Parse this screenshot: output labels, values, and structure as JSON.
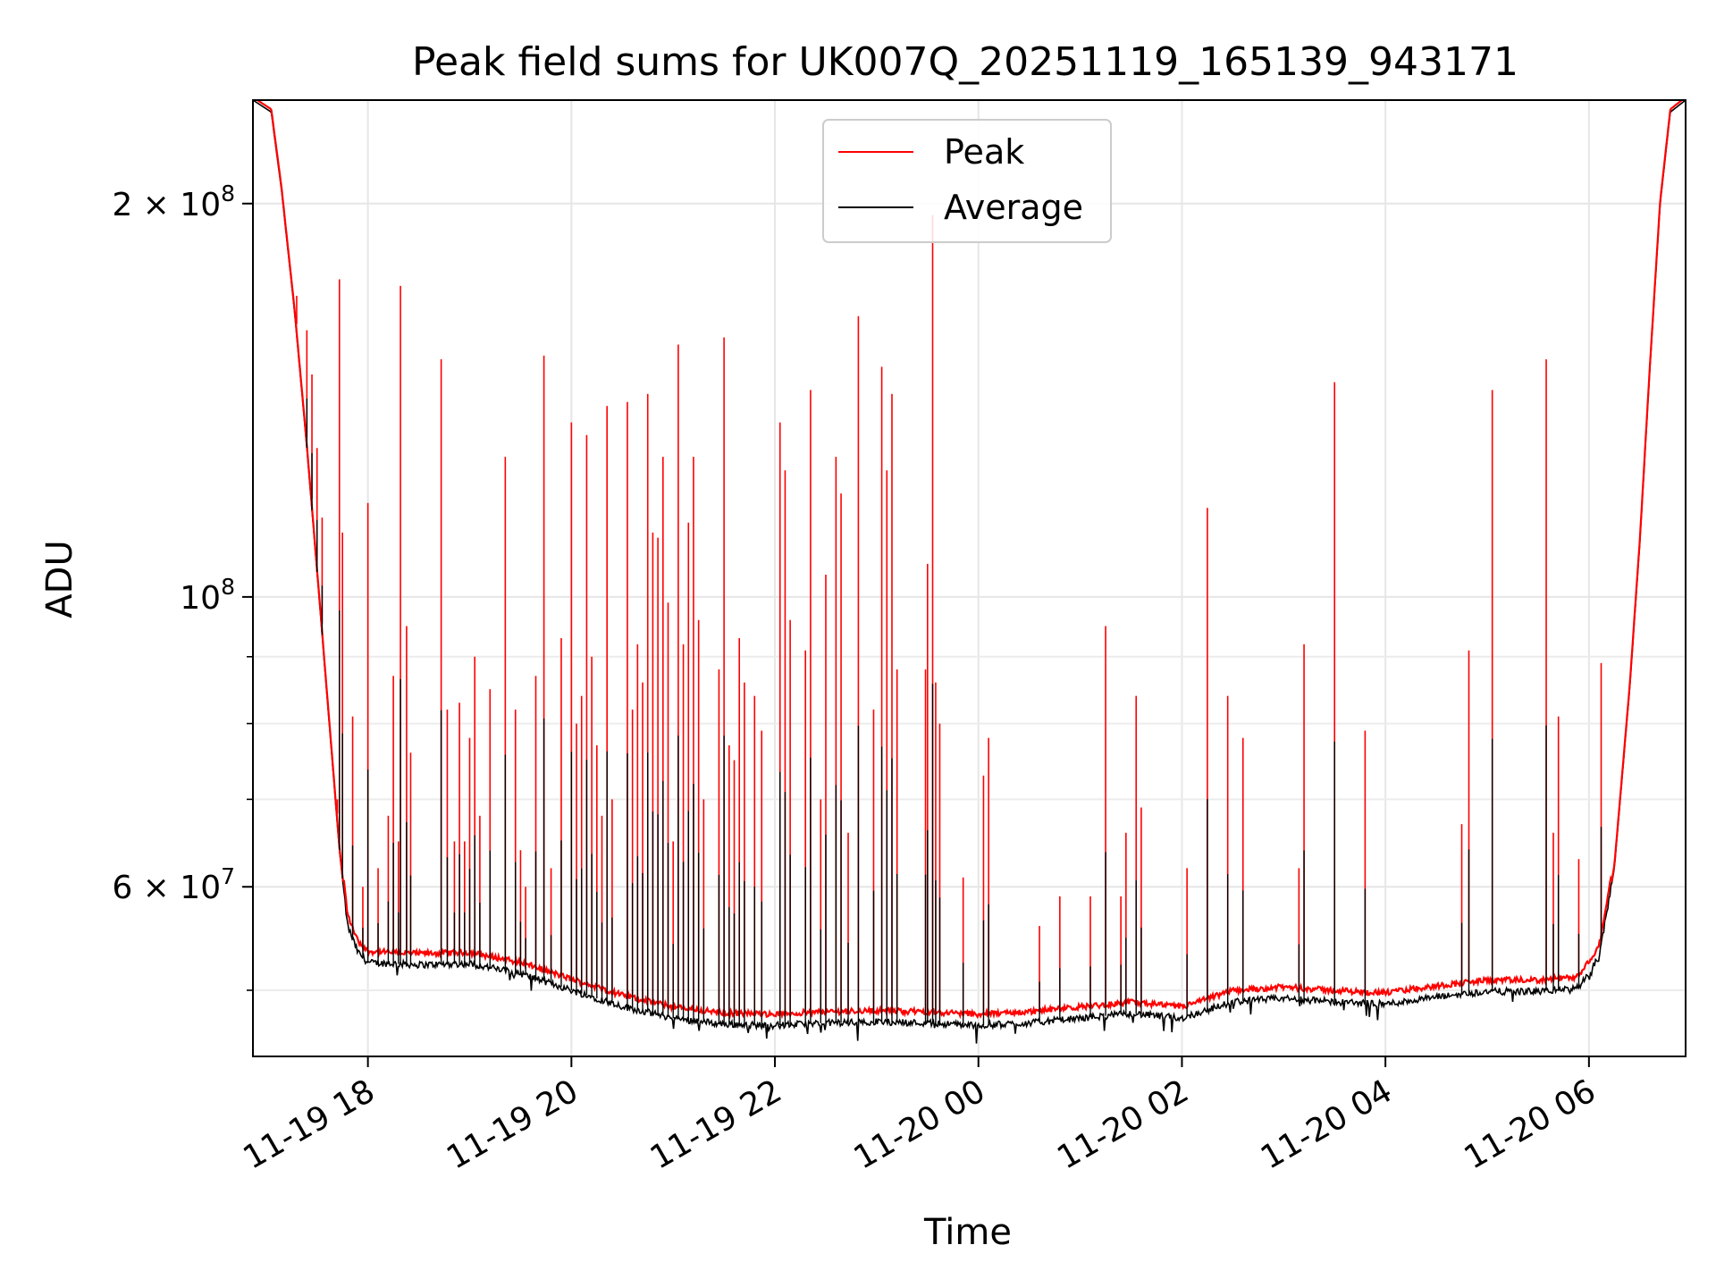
{
  "chart_data": {
    "type": "line",
    "title": "Peak field sums for UK007Q_20251119_165139_943171",
    "xlabel": "Time",
    "ylabel": "ADU",
    "yscale": "log",
    "ylim": [
      44500000,
      240000000
    ],
    "xlim_hours": [
      -1.13,
      12.95
    ],
    "x_ticks": [
      {
        "hour": 0,
        "label": "11-19 18"
      },
      {
        "hour": 2,
        "label": "11-19 20"
      },
      {
        "hour": 4,
        "label": "11-19 22"
      },
      {
        "hour": 6,
        "label": "11-20 00"
      },
      {
        "hour": 8,
        "label": "11-20 02"
      },
      {
        "hour": 10,
        "label": "11-20 04"
      },
      {
        "hour": 12,
        "label": "11-20 06"
      }
    ],
    "y_major_ticks": [
      {
        "value": 200000000,
        "label": "2 × 10",
        "exp": "8"
      },
      {
        "value": 100000000,
        "label": "10",
        "exp": "8"
      },
      {
        "value": 60000000,
        "label": "6 × 10",
        "exp": "7"
      }
    ],
    "y_minor_grid": [
      50000000,
      70000000,
      80000000,
      90000000
    ],
    "grid": true,
    "legend": {
      "position": "upper-center",
      "entries": [
        "Peak",
        "Average"
      ]
    },
    "series_colors": {
      "Peak": "#ff0000",
      "Average": "#000000"
    },
    "baseline_average": [
      [
        -1.13,
        240000000
      ],
      [
        -0.95,
        235000000
      ],
      [
        -0.85,
        205000000
      ],
      [
        -0.72,
        165000000
      ],
      [
        -0.6,
        130000000
      ],
      [
        -0.48,
        100000000
      ],
      [
        -0.38,
        80000000
      ],
      [
        -0.28,
        64000000
      ],
      [
        -0.2,
        56000000
      ],
      [
        -0.1,
        53500000
      ],
      [
        0.0,
        52500000
      ],
      [
        0.5,
        52300000
      ],
      [
        1.0,
        52400000
      ],
      [
        1.5,
        51500000
      ],
      [
        2.0,
        50000000
      ],
      [
        2.5,
        48600000
      ],
      [
        3.0,
        47600000
      ],
      [
        3.5,
        47100000
      ],
      [
        4.0,
        47000000
      ],
      [
        4.5,
        47200000
      ],
      [
        5.0,
        47300000
      ],
      [
        5.5,
        47200000
      ],
      [
        6.0,
        47000000
      ],
      [
        6.5,
        47200000
      ],
      [
        7.0,
        47600000
      ],
      [
        7.5,
        48000000
      ],
      [
        8.0,
        47600000
      ],
      [
        8.5,
        49000000
      ],
      [
        9.0,
        49300000
      ],
      [
        9.5,
        49000000
      ],
      [
        10.0,
        48800000
      ],
      [
        10.5,
        49400000
      ],
      [
        11.0,
        49900000
      ],
      [
        11.5,
        49900000
      ],
      [
        11.9,
        50200000
      ],
      [
        12.1,
        53000000
      ],
      [
        12.25,
        62000000
      ],
      [
        12.4,
        85000000
      ],
      [
        12.5,
        110000000
      ],
      [
        12.6,
        150000000
      ],
      [
        12.7,
        200000000
      ],
      [
        12.8,
        235000000
      ],
      [
        12.95,
        240000000
      ]
    ],
    "peak_offset_fraction": 0.02,
    "peak_spikes": [
      [
        -0.7,
        170000000
      ],
      [
        -0.6,
        160000000
      ],
      [
        -0.55,
        148000000
      ],
      [
        -0.5,
        130000000
      ],
      [
        -0.45,
        115000000
      ],
      [
        -0.3,
        70000000
      ],
      [
        -0.28,
        175000000
      ],
      [
        -0.25,
        112000000
      ],
      [
        -0.15,
        81000000
      ],
      [
        -0.05,
        60000000
      ],
      [
        0.0,
        118000000
      ],
      [
        0.1,
        62000000
      ],
      [
        0.2,
        68000000
      ],
      [
        0.25,
        87000000
      ],
      [
        0.3,
        65000000
      ],
      [
        0.32,
        173000000
      ],
      [
        0.38,
        95000000
      ],
      [
        0.42,
        76000000
      ],
      [
        0.72,
        152000000
      ],
      [
        0.78,
        82000000
      ],
      [
        0.85,
        65000000
      ],
      [
        0.9,
        83000000
      ],
      [
        0.95,
        65000000
      ],
      [
        1.0,
        78000000
      ],
      [
        1.05,
        90000000
      ],
      [
        1.1,
        68000000
      ],
      [
        1.2,
        85000000
      ],
      [
        1.35,
        128000000
      ],
      [
        1.45,
        82000000
      ],
      [
        1.5,
        64000000
      ],
      [
        1.55,
        60000000
      ],
      [
        1.65,
        87000000
      ],
      [
        1.73,
        153000000
      ],
      [
        1.8,
        62000000
      ],
      [
        1.9,
        93000000
      ],
      [
        2.0,
        136000000
      ],
      [
        2.05,
        80000000
      ],
      [
        2.1,
        84000000
      ],
      [
        2.15,
        133000000
      ],
      [
        2.2,
        90000000
      ],
      [
        2.25,
        77000000
      ],
      [
        2.3,
        68000000
      ],
      [
        2.35,
        140000000
      ],
      [
        2.4,
        70000000
      ],
      [
        2.55,
        141000000
      ],
      [
        2.6,
        82000000
      ],
      [
        2.65,
        92000000
      ],
      [
        2.7,
        86000000
      ],
      [
        2.75,
        143000000
      ],
      [
        2.8,
        112000000
      ],
      [
        2.85,
        111000000
      ],
      [
        2.9,
        128000000
      ],
      [
        2.95,
        99000000
      ],
      [
        3.0,
        65000000
      ],
      [
        3.05,
        156000000
      ],
      [
        3.1,
        92000000
      ],
      [
        3.15,
        114000000
      ],
      [
        3.2,
        128000000
      ],
      [
        3.25,
        96000000
      ],
      [
        3.3,
        70000000
      ],
      [
        3.45,
        88000000
      ],
      [
        3.5,
        158000000
      ],
      [
        3.55,
        77000000
      ],
      [
        3.6,
        75000000
      ],
      [
        3.65,
        93000000
      ],
      [
        3.7,
        86000000
      ],
      [
        3.8,
        84000000
      ],
      [
        3.87,
        79000000
      ],
      [
        4.05,
        136000000
      ],
      [
        4.1,
        125000000
      ],
      [
        4.15,
        96000000
      ],
      [
        4.3,
        91000000
      ],
      [
        4.35,
        144000000
      ],
      [
        4.45,
        70000000
      ],
      [
        4.5,
        104000000
      ],
      [
        4.6,
        128000000
      ],
      [
        4.65,
        120000000
      ],
      [
        4.72,
        66000000
      ],
      [
        4.82,
        164000000
      ],
      [
        4.97,
        82000000
      ],
      [
        5.05,
        150000000
      ],
      [
        5.1,
        125000000
      ],
      [
        5.15,
        143000000
      ],
      [
        5.2,
        88000000
      ],
      [
        5.48,
        88000000
      ],
      [
        5.5,
        106000000
      ],
      [
        5.55,
        196000000
      ],
      [
        5.58,
        86000000
      ],
      [
        5.62,
        80000000
      ],
      [
        5.85,
        61000000
      ],
      [
        6.05,
        73000000
      ],
      [
        6.1,
        78000000
      ],
      [
        6.6,
        56000000
      ],
      [
        6.8,
        59000000
      ],
      [
        7.1,
        59000000
      ],
      [
        7.25,
        95000000
      ],
      [
        7.4,
        59000000
      ],
      [
        7.45,
        66000000
      ],
      [
        7.55,
        84000000
      ],
      [
        7.6,
        69000000
      ],
      [
        8.05,
        62000000
      ],
      [
        8.25,
        117000000
      ],
      [
        8.45,
        84000000
      ],
      [
        8.6,
        78000000
      ],
      [
        9.15,
        62000000
      ],
      [
        9.2,
        92000000
      ],
      [
        9.5,
        146000000
      ],
      [
        9.8,
        79000000
      ],
      [
        10.75,
        67000000
      ],
      [
        10.82,
        91000000
      ],
      [
        11.05,
        144000000
      ],
      [
        11.58,
        152000000
      ],
      [
        11.65,
        66000000
      ],
      [
        11.7,
        81000000
      ],
      [
        11.9,
        63000000
      ],
      [
        12.12,
        89000000
      ]
    ]
  }
}
